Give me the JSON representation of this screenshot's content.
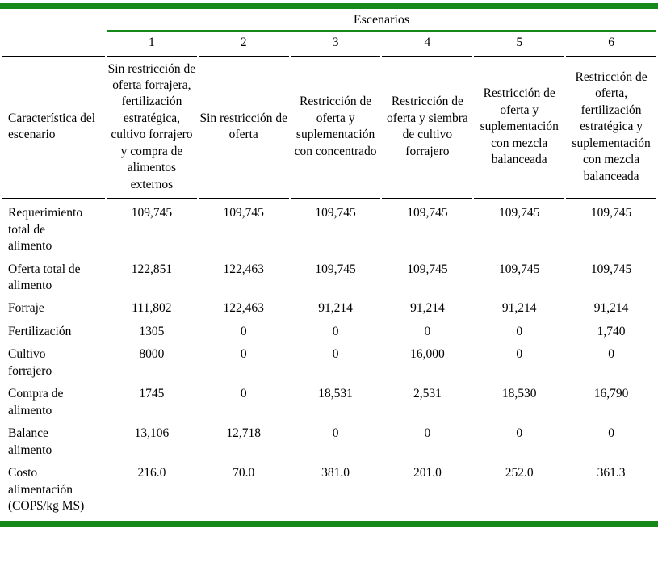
{
  "table": {
    "group_header": "Escenarios",
    "scenario_numbers": [
      "1",
      "2",
      "3",
      "4",
      "5",
      "6"
    ],
    "row_header_label": "Característica del escenario",
    "scenario_descriptions": [
      "Sin restricción de oferta forrajera, fertilización estratégica, cultivo forrajero y compra de alimentos externos",
      "Sin restricción de oferta",
      "Restricción de oferta y suplementación con concentrado",
      "Restricción de oferta y siembra de cultivo forrajero",
      "Restricción de oferta y suplementación con mezcla balanceada",
      "Restricción de oferta, fertilización estratégica y suplementación con mezcla balanceada"
    ],
    "rows": [
      {
        "label": "Requerimiento total de alimento",
        "values": [
          "109,745",
          "109,745",
          "109,745",
          "109,745",
          "109,745",
          "109,745"
        ]
      },
      {
        "label": "Oferta total de alimento",
        "values": [
          "122,851",
          "122,463",
          "109,745",
          "109,745",
          "109,745",
          "109,745"
        ]
      },
      {
        "label": "Forraje",
        "values": [
          "111,802",
          "122,463",
          "91,214",
          "91,214",
          "91,214",
          "91,214"
        ]
      },
      {
        "label": "Fertilización",
        "values": [
          "1305",
          "0",
          "0",
          "0",
          "0",
          "1,740"
        ]
      },
      {
        "label": "Cultivo forrajero",
        "values": [
          "8000",
          "0",
          "0",
          "16,000",
          "0",
          "0"
        ]
      },
      {
        "label": "Compra de alimento",
        "values": [
          "1745",
          "0",
          "18,531",
          "2,531",
          "18,530",
          "16,790"
        ]
      },
      {
        "label": "Balance alimento",
        "values": [
          "13,106",
          "12,718",
          "0",
          "0",
          "0",
          "0"
        ]
      },
      {
        "label": "Costo alimentación (COP$/kg MS)",
        "values": [
          "216.0",
          "70.0",
          "381.0",
          "201.0",
          "252.0",
          "361.3"
        ]
      }
    ],
    "colors": {
      "accent_green": "#16891b",
      "text": "#000000"
    }
  }
}
